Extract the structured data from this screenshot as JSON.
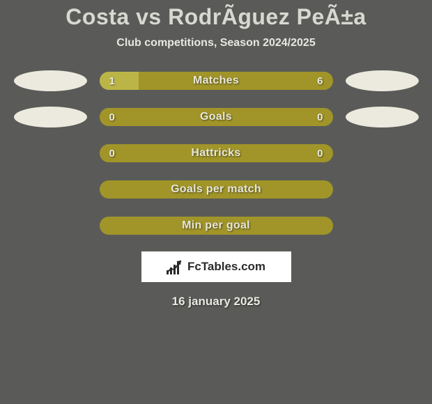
{
  "title": "Costa vs RodrÃ­guez PeÃ±a",
  "subtitle": "Club competitions, Season 2024/2025",
  "date": "16 january 2025",
  "logo": {
    "text_bold": "Fc",
    "text_rest": "Tables.com"
  },
  "colors": {
    "background": "#5a5b58",
    "bar_left_win": "#bbb548",
    "bar_right_win": "#a19529",
    "bar_neutral": "#a19529",
    "oval": "#eceade",
    "title": "#d7d8d1",
    "text": "#e7e7e1"
  },
  "rows": [
    {
      "label": "Matches",
      "left_value": "1",
      "right_value": "6",
      "left_pct": 17,
      "right_pct": 83,
      "show_ovals": true,
      "split": true
    },
    {
      "label": "Goals",
      "left_value": "0",
      "right_value": "0",
      "left_pct": 0,
      "right_pct": 0,
      "show_ovals": true,
      "split": false
    },
    {
      "label": "Hattricks",
      "left_value": "0",
      "right_value": "0",
      "left_pct": 0,
      "right_pct": 0,
      "show_ovals": false,
      "split": false
    },
    {
      "label": "Goals per match",
      "left_value": "",
      "right_value": "",
      "left_pct": 0,
      "right_pct": 0,
      "show_ovals": false,
      "split": false
    },
    {
      "label": "Min per goal",
      "left_value": "",
      "right_value": "",
      "left_pct": 0,
      "right_pct": 0,
      "show_ovals": false,
      "split": false
    }
  ]
}
